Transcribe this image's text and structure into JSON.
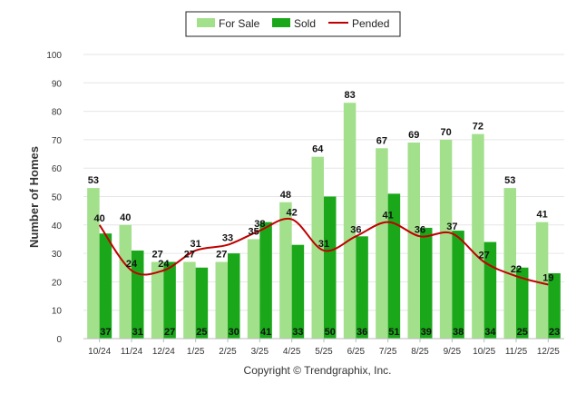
{
  "chart_data": {
    "type": "bar",
    "title": "",
    "xlabel": "",
    "ylabel": "Number of Homes",
    "ylim": [
      0,
      100
    ],
    "yticks": [
      0,
      10,
      20,
      30,
      40,
      50,
      60,
      70,
      80,
      90,
      100
    ],
    "grid": true,
    "legend_position": "top-center",
    "categories": [
      "10/24",
      "11/24",
      "12/24",
      "1/25",
      "2/25",
      "3/25",
      "4/25",
      "5/25",
      "6/25",
      "7/25",
      "8/25",
      "9/25",
      "10/25",
      "11/25",
      "12/25"
    ],
    "series": [
      {
        "name": "For Sale",
        "type": "bar",
        "color": "#a2e08c",
        "values": [
          53,
          40,
          27,
          27,
          27,
          35,
          48,
          64,
          83,
          67,
          69,
          70,
          72,
          53,
          41
        ]
      },
      {
        "name": "Sold",
        "type": "bar",
        "color": "#1aa81a",
        "values": [
          37,
          31,
          27,
          25,
          30,
          41,
          33,
          50,
          36,
          51,
          39,
          38,
          34,
          25,
          23
        ]
      },
      {
        "name": "Pended",
        "type": "line",
        "color": "#c00000",
        "values": [
          40,
          24,
          24,
          31,
          33,
          38,
          42,
          31,
          36,
          41,
          36,
          37,
          27,
          22,
          19
        ]
      }
    ]
  },
  "footer": {
    "copyright": "Copyright © Trendgraphix, Inc."
  }
}
